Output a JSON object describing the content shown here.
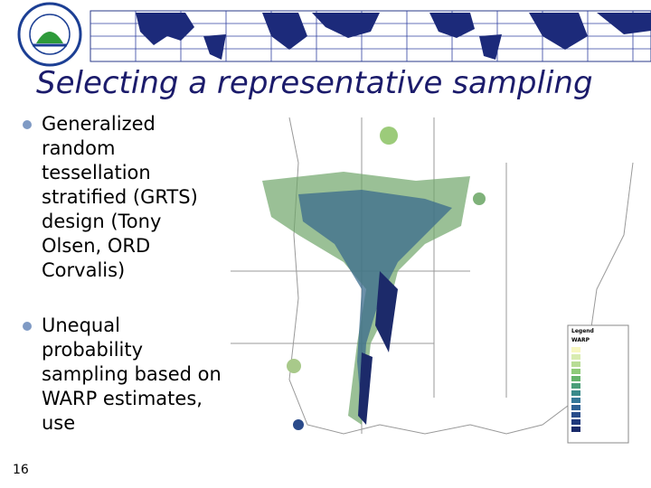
{
  "header": {
    "title": "Selecting a representative sampling"
  },
  "bullets": [
    "Generalized random tessellation stratified (GRTS) design (Tony Olsen, ORD Corvalis)",
    "Unequal probability sampling based on WARP estimates, use"
  ],
  "map": {
    "legend_title": "Legend",
    "legend_subtitle": "WARP"
  },
  "footer": {
    "page_number": "16"
  }
}
